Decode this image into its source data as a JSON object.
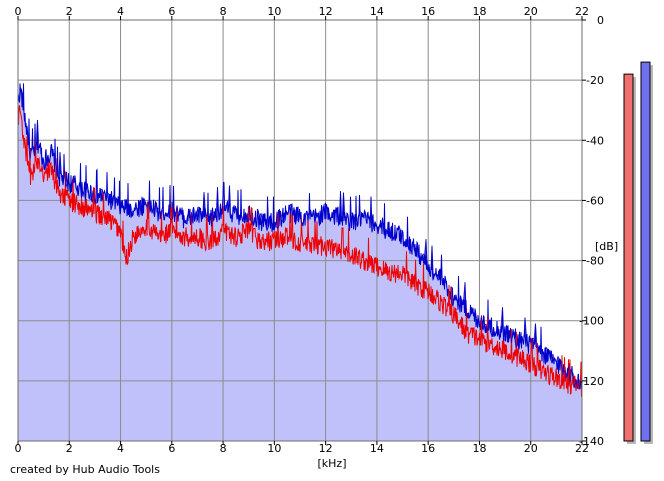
{
  "chart_data": {
    "type": "area",
    "xlabel": "[kHz]",
    "ylabel": "[dB]",
    "xlim": [
      0,
      22
    ],
    "ylim": [
      -140,
      0
    ],
    "x_ticks": [
      "0",
      "2",
      "4",
      "6",
      "8",
      "10",
      "12",
      "14",
      "16",
      "18",
      "20",
      "22"
    ],
    "y_ticks": [
      "0",
      "-20",
      "-40",
      "-60",
      "-80",
      "-100",
      "-120",
      "-140"
    ],
    "grid": true,
    "series": [
      {
        "color": "#0000cc",
        "fill": "#c0c0fa",
        "x": [
          0,
          0.1,
          0.3,
          0.5,
          0.8,
          1.0,
          1.3,
          1.6,
          2.0,
          2.5,
          3.0,
          3.5,
          4.0,
          4.5,
          5.0,
          5.5,
          6.0,
          6.5,
          7.0,
          7.5,
          8.0,
          8.5,
          9.0,
          9.5,
          10.0,
          10.5,
          11.0,
          11.5,
          12.0,
          12.5,
          13.0,
          13.5,
          14.0,
          14.5,
          15.0,
          15.5,
          16.0,
          16.5,
          17.0,
          17.5,
          18.0,
          18.5,
          19.0,
          19.5,
          20.0,
          20.5,
          21.0,
          21.5,
          22.0
        ],
        "y": [
          -26,
          -23,
          -34,
          -45,
          -41,
          -47,
          -44,
          -52,
          -54,
          -56,
          -58,
          -59,
          -62,
          -63,
          -61,
          -64,
          -63,
          -66,
          -65,
          -66,
          -62,
          -65,
          -64,
          -67,
          -67,
          -64,
          -65,
          -66,
          -64,
          -65,
          -67,
          -66,
          -68,
          -70,
          -72,
          -76,
          -82,
          -86,
          -92,
          -96,
          -100,
          -102,
          -104,
          -106,
          -108,
          -111,
          -114,
          -117,
          -122
        ]
      },
      {
        "color": "#ee0000",
        "x": [
          0,
          0.1,
          0.3,
          0.5,
          0.8,
          1.0,
          1.3,
          1.6,
          2.0,
          2.5,
          3.0,
          3.5,
          4.0,
          4.2,
          4.5,
          5.0,
          5.5,
          6.0,
          6.5,
          7.0,
          7.5,
          8.0,
          8.5,
          9.0,
          9.5,
          10.0,
          10.5,
          11.0,
          11.5,
          12.0,
          12.5,
          13.0,
          13.5,
          14.0,
          14.5,
          15.0,
          15.5,
          16.0,
          16.5,
          17.0,
          17.5,
          18.0,
          18.5,
          19.0,
          19.5,
          20.0,
          20.5,
          21.0,
          21.5,
          22.0
        ],
        "y": [
          -32,
          -30,
          -45,
          -52,
          -46,
          -51,
          -50,
          -57,
          -60,
          -62,
          -64,
          -66,
          -70,
          -80,
          -72,
          -68,
          -72,
          -70,
          -72,
          -72,
          -74,
          -70,
          -72,
          -70,
          -74,
          -73,
          -72,
          -74,
          -75,
          -75,
          -77,
          -78,
          -80,
          -82,
          -84,
          -84,
          -88,
          -90,
          -94,
          -98,
          -104,
          -106,
          -108,
          -110,
          -112,
          -114,
          -117,
          -119,
          -121,
          -122
        ]
      }
    ],
    "level_bars": {
      "min_db": -140,
      "max_db": 0,
      "values": [
        -18,
        -14
      ],
      "colors": [
        "#f07070",
        "#7070f0"
      ]
    }
  },
  "credit": "created by Hub Audio Tools"
}
